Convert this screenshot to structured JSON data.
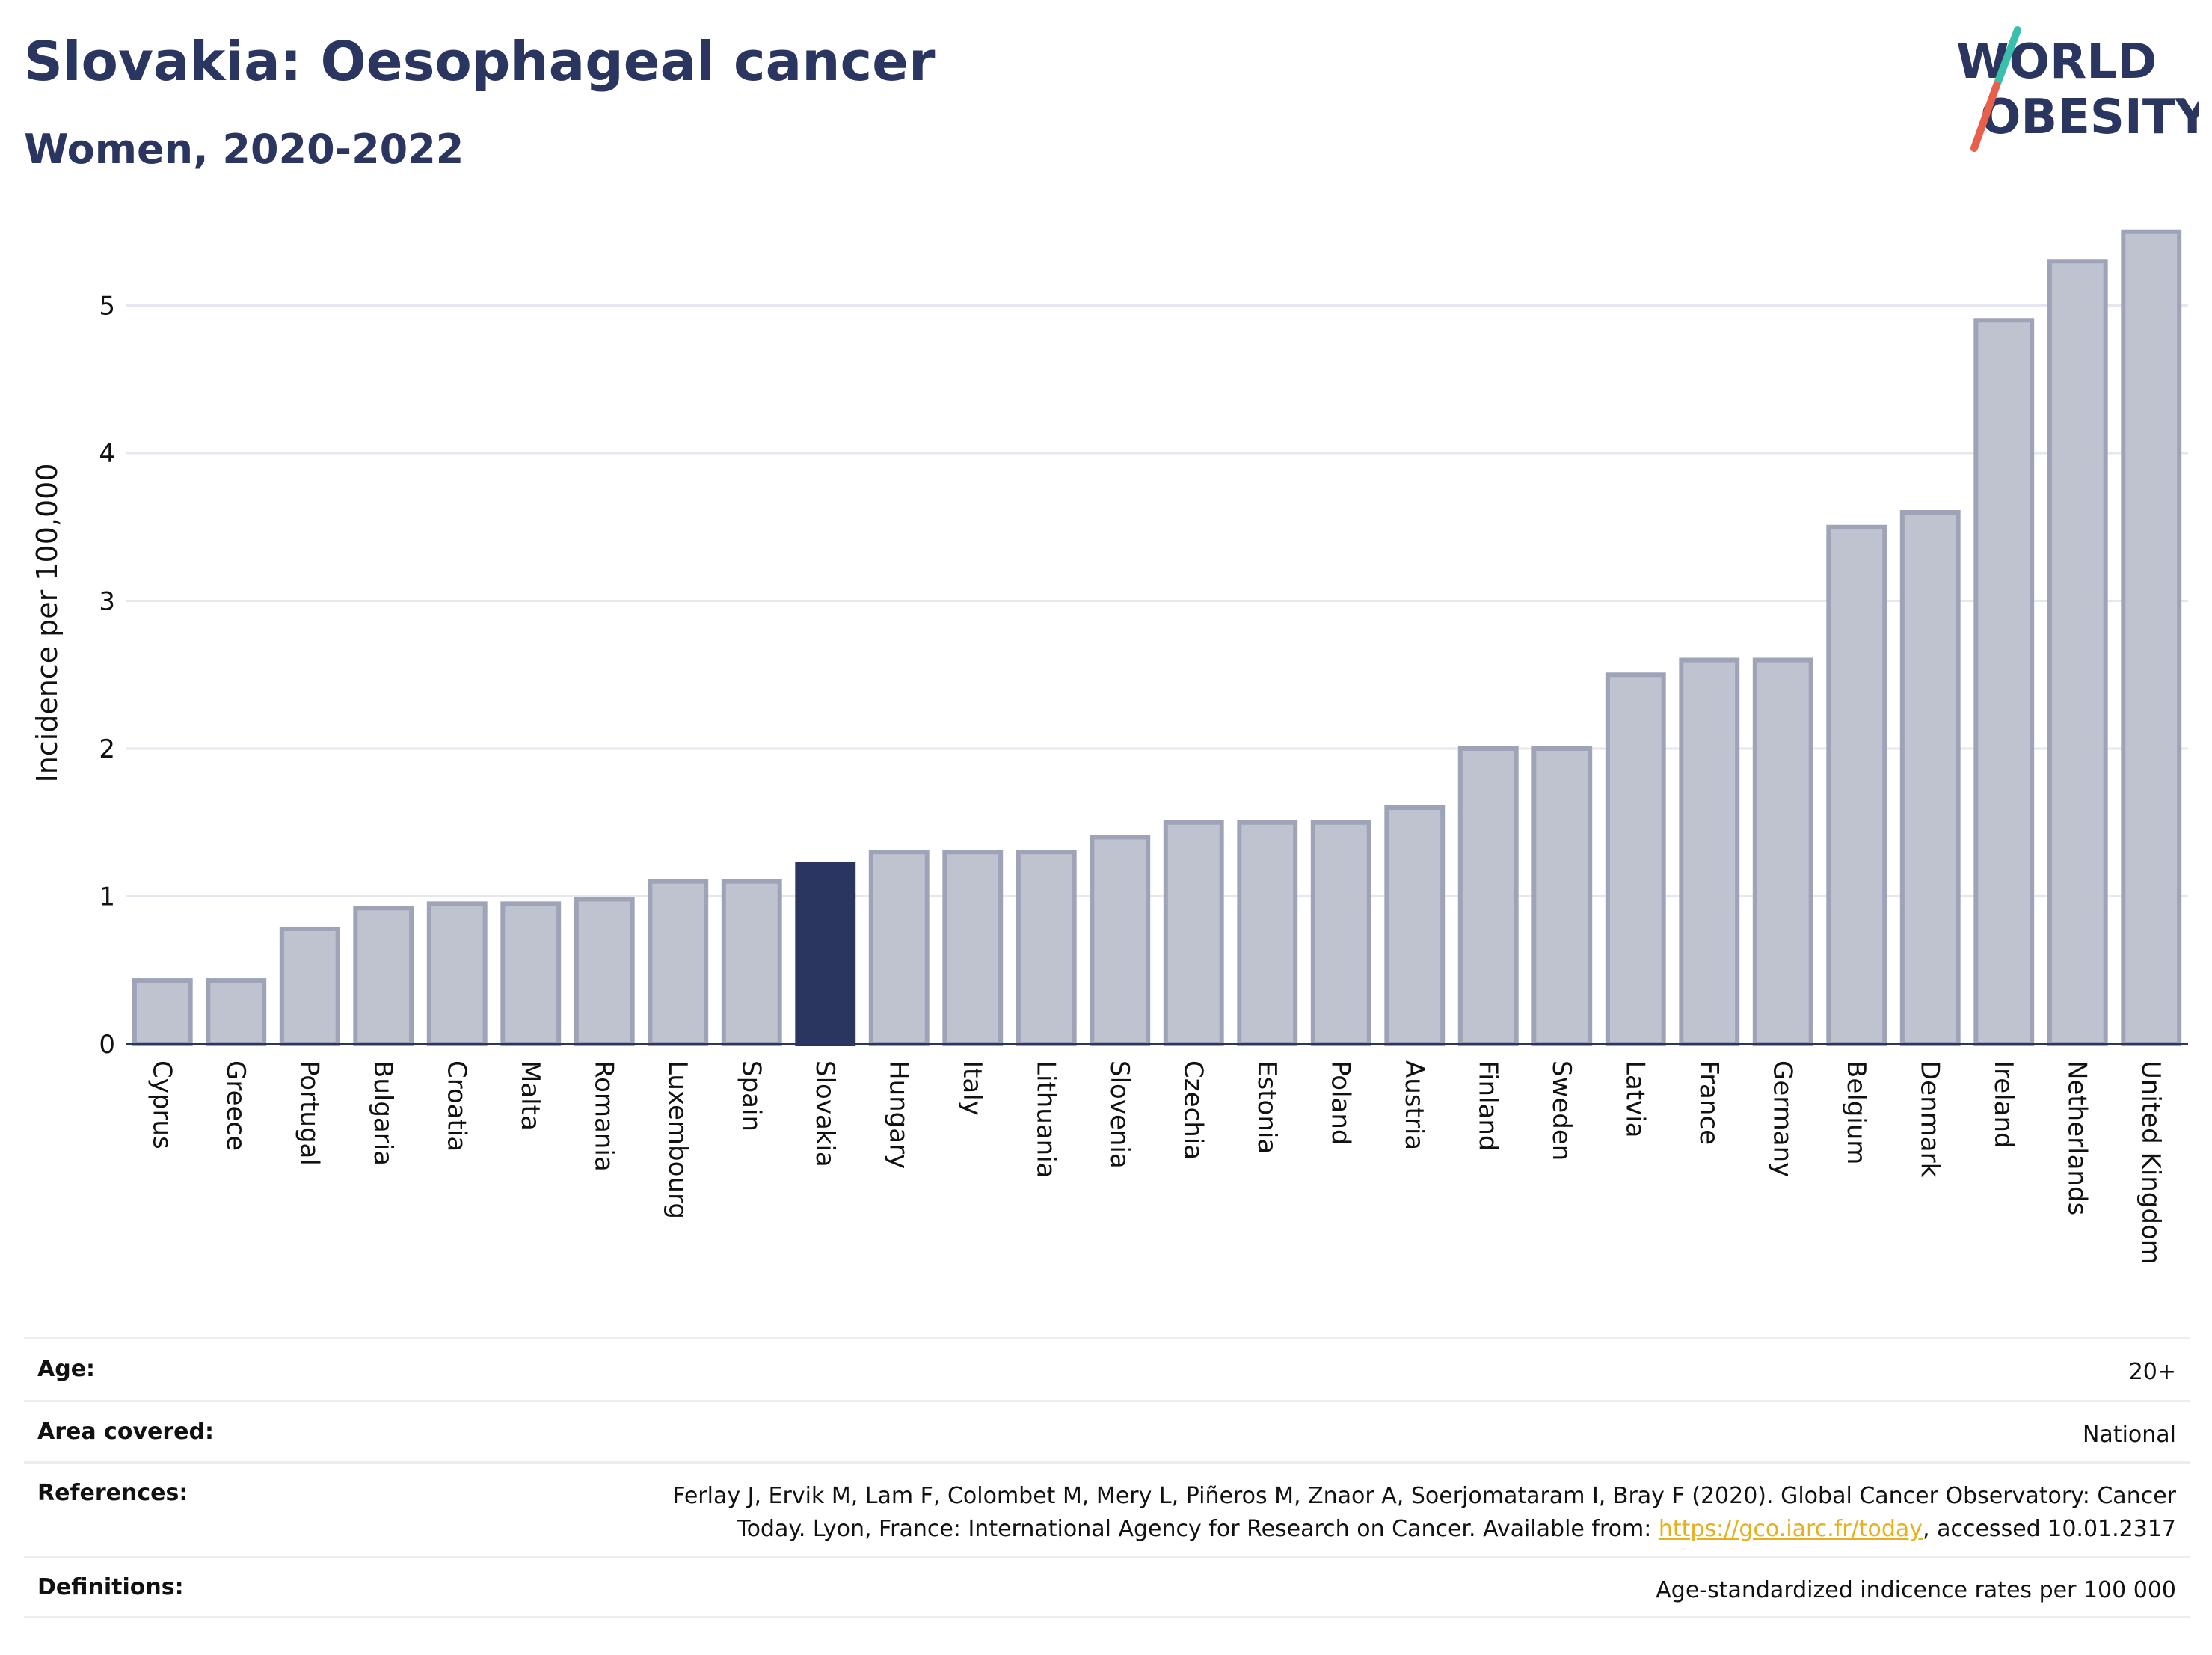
{
  "header": {
    "title": "Slovakia: Oesophageal cancer",
    "subtitle": "Women, 2020-2022"
  },
  "logo": {
    "line1": "WORLD",
    "line2": "OBESITY",
    "accent_teal": "#3bbfad",
    "accent_red": "#e8604c"
  },
  "chart_data": {
    "type": "bar",
    "title": "Slovakia: Oesophageal cancer",
    "subtitle": "Women, 2020-2022",
    "xlabel": "",
    "ylabel": "Incidence per 100,000",
    "ylim": [
      0,
      5.6
    ],
    "yticks": [
      0,
      1,
      2,
      3,
      4,
      5
    ],
    "grid": true,
    "highlight": "Slovakia",
    "colors": {
      "bar": "#bfc2cf",
      "bar_border": "#9ea3b8",
      "highlight": "#2a3560"
    },
    "categories": [
      "Cyprus",
      "Greece",
      "Portugal",
      "Bulgaria",
      "Croatia",
      "Malta",
      "Romania",
      "Luxembourg",
      "Spain",
      "Slovakia",
      "Hungary",
      "Italy",
      "Lithuania",
      "Slovenia",
      "Czechia",
      "Estonia",
      "Poland",
      "Austria",
      "Finland",
      "Sweden",
      "Latvia",
      "France",
      "Germany",
      "Belgium",
      "Denmark",
      "Ireland",
      "Netherlands",
      "United Kingdom"
    ],
    "values": [
      0.43,
      0.43,
      0.78,
      0.92,
      0.95,
      0.95,
      0.98,
      1.1,
      1.1,
      1.22,
      1.3,
      1.3,
      1.3,
      1.4,
      1.5,
      1.5,
      1.5,
      1.6,
      2.0,
      2.0,
      2.5,
      2.6,
      2.6,
      3.5,
      3.6,
      4.9,
      5.3,
      5.5
    ]
  },
  "info": [
    {
      "label": "Age:",
      "value": "20+"
    },
    {
      "label": "Area covered:",
      "value": "National"
    },
    {
      "label": "References:",
      "value": "Ferlay J, Ervik M, Lam F, Colombet M, Mery L, Piñeros M, Znaor A, Soerjomataram I, Bray F (2020). Global Cancer Observatory: Cancer",
      "value2": "Today. Lyon, France: International Agency for Research on Cancer. Available from: ",
      "link": "https://gco.iarc.fr/today",
      "value3": ", accessed 10.01.2317"
    },
    {
      "label": "Definitions:",
      "value": "Age-standardized indicence rates per 100 000"
    }
  ]
}
